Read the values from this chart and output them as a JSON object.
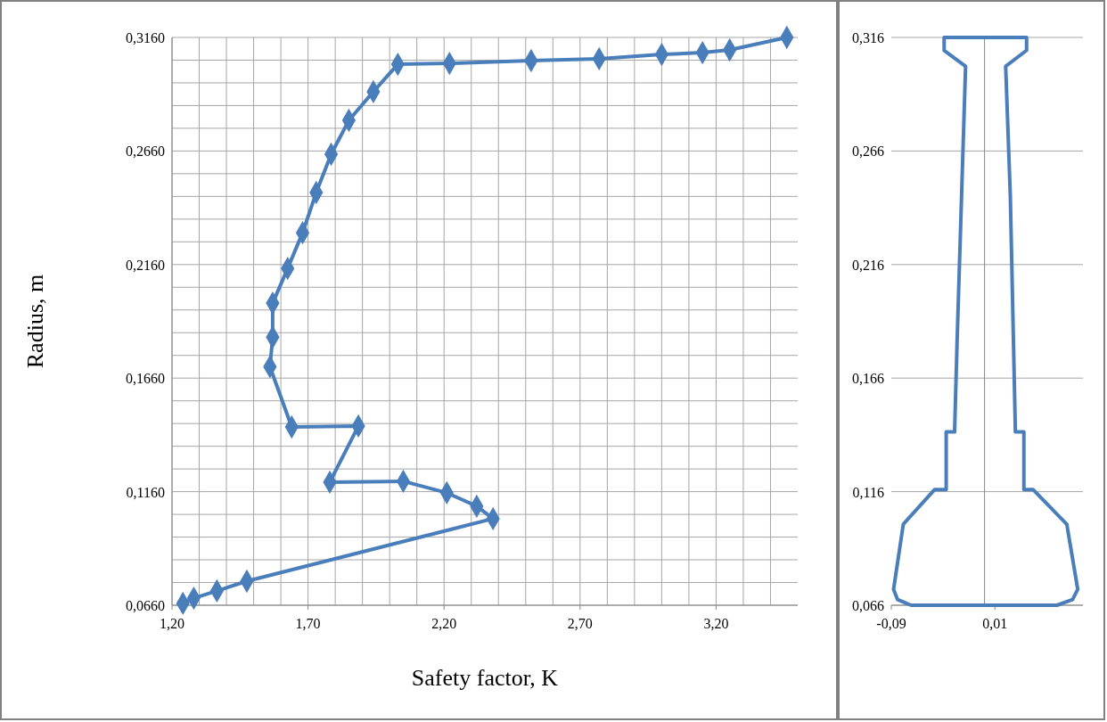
{
  "chart_data": [
    {
      "type": "line",
      "xlabel": "Safety factor, K",
      "ylabel": "Radius, m",
      "marker": "diamond",
      "grid": true,
      "xlim": [
        1.2,
        3.5
      ],
      "ylim": [
        0.066,
        0.316
      ],
      "xticks": [
        {
          "value": 1.2,
          "label": "1,20"
        },
        {
          "value": 1.3,
          "label": null
        },
        {
          "value": 1.4,
          "label": null
        },
        {
          "value": 1.5,
          "label": null
        },
        {
          "value": 1.6,
          "label": null
        },
        {
          "value": 1.7,
          "label": "1,70"
        },
        {
          "value": 1.8,
          "label": null
        },
        {
          "value": 1.9,
          "label": null
        },
        {
          "value": 2.0,
          "label": null
        },
        {
          "value": 2.1,
          "label": null
        },
        {
          "value": 2.2,
          "label": "2,20"
        },
        {
          "value": 2.3,
          "label": null
        },
        {
          "value": 2.4,
          "label": null
        },
        {
          "value": 2.5,
          "label": null
        },
        {
          "value": 2.6,
          "label": null
        },
        {
          "value": 2.7,
          "label": "2,70"
        },
        {
          "value": 2.8,
          "label": null
        },
        {
          "value": 2.9,
          "label": null
        },
        {
          "value": 3.0,
          "label": null
        },
        {
          "value": 3.1,
          "label": null
        },
        {
          "value": 3.2,
          "label": "3,20"
        },
        {
          "value": 3.3,
          "label": null
        },
        {
          "value": 3.4,
          "label": null
        }
      ],
      "yticks": [
        {
          "value": 0.066,
          "label": "0,0660"
        },
        {
          "value": 0.076,
          "label": null
        },
        {
          "value": 0.086,
          "label": null
        },
        {
          "value": 0.096,
          "label": null
        },
        {
          "value": 0.106,
          "label": null
        },
        {
          "value": 0.116,
          "label": "0,1160"
        },
        {
          "value": 0.126,
          "label": null
        },
        {
          "value": 0.136,
          "label": null
        },
        {
          "value": 0.146,
          "label": null
        },
        {
          "value": 0.156,
          "label": null
        },
        {
          "value": 0.166,
          "label": "0,1660"
        },
        {
          "value": 0.176,
          "label": null
        },
        {
          "value": 0.186,
          "label": null
        },
        {
          "value": 0.196,
          "label": null
        },
        {
          "value": 0.206,
          "label": null
        },
        {
          "value": 0.216,
          "label": "0,2160"
        },
        {
          "value": 0.226,
          "label": null
        },
        {
          "value": 0.236,
          "label": null
        },
        {
          "value": 0.246,
          "label": null
        },
        {
          "value": 0.256,
          "label": null
        },
        {
          "value": 0.266,
          "label": "0,2660"
        },
        {
          "value": 0.276,
          "label": null
        },
        {
          "value": 0.286,
          "label": null
        },
        {
          "value": 0.296,
          "label": null
        },
        {
          "value": 0.306,
          "label": null
        },
        {
          "value": 0.316,
          "label": "0,3160"
        }
      ],
      "series": [
        {
          "color": "#4a7ebb",
          "x": [
            3.46,
            3.25,
            3.15,
            3.0,
            2.77,
            2.52,
            2.22,
            2.03,
            1.94,
            1.85,
            1.785,
            1.73,
            1.68,
            1.625,
            1.57,
            1.57,
            1.56,
            1.64,
            1.885,
            1.78,
            2.05,
            2.21,
            2.32,
            2.38,
            1.475,
            1.365,
            1.28,
            1.24
          ],
          "values": [
            0.316,
            0.3105,
            0.3093,
            0.3085,
            0.3066,
            0.3058,
            0.3046,
            0.3042,
            0.2921,
            0.2795,
            0.2646,
            0.2477,
            0.23,
            0.2143,
            0.199,
            0.184,
            0.171,
            0.1445,
            0.1449,
            0.1202,
            0.1206,
            0.1155,
            0.1096,
            0.1041,
            0.0766,
            0.0723,
            0.0691,
            0.0668
          ]
        }
      ]
    },
    {
      "type": "line",
      "marker": "none",
      "grid": "y",
      "xlim": [
        -0.09,
        0.095
      ],
      "ylim": [
        0.066,
        0.316
      ],
      "xticks": [
        {
          "value": -0.09,
          "label": "-0,09"
        },
        {
          "value": 0.01,
          "label": "0,01"
        }
      ],
      "yticks": [
        {
          "value": 0.066,
          "label": "0,066"
        },
        {
          "value": 0.116,
          "label": "0,116"
        },
        {
          "value": 0.166,
          "label": "0,166"
        },
        {
          "value": 0.216,
          "label": "0,216"
        },
        {
          "value": 0.266,
          "label": "0,266"
        },
        {
          "value": 0.316,
          "label": "0,316"
        }
      ],
      "series": [
        {
          "color": "#4a7ebb",
          "x": [
            -0.039,
            -0.039,
            -0.0183,
            -0.0265,
            -0.0289,
            -0.037,
            -0.037,
            -0.0483,
            -0.0784,
            -0.0878,
            -0.084,
            -0.071,
            0.07,
            0.085,
            0.09,
            0.0794,
            0.047,
            0.038,
            0.038,
            0.0298,
            0.0249,
            0.0204,
            0.0406,
            0.0406,
            -0.0385
          ],
          "values": [
            0.316,
            0.3103,
            0.3033,
            0.182,
            0.1423,
            0.1423,
            0.1169,
            0.1169,
            0.1017,
            0.073,
            0.0685,
            0.066,
            0.066,
            0.0685,
            0.073,
            0.1017,
            0.1169,
            0.1169,
            0.1423,
            0.1423,
            0.2462,
            0.3033,
            0.3103,
            0.316,
            0.316
          ]
        }
      ]
    }
  ]
}
